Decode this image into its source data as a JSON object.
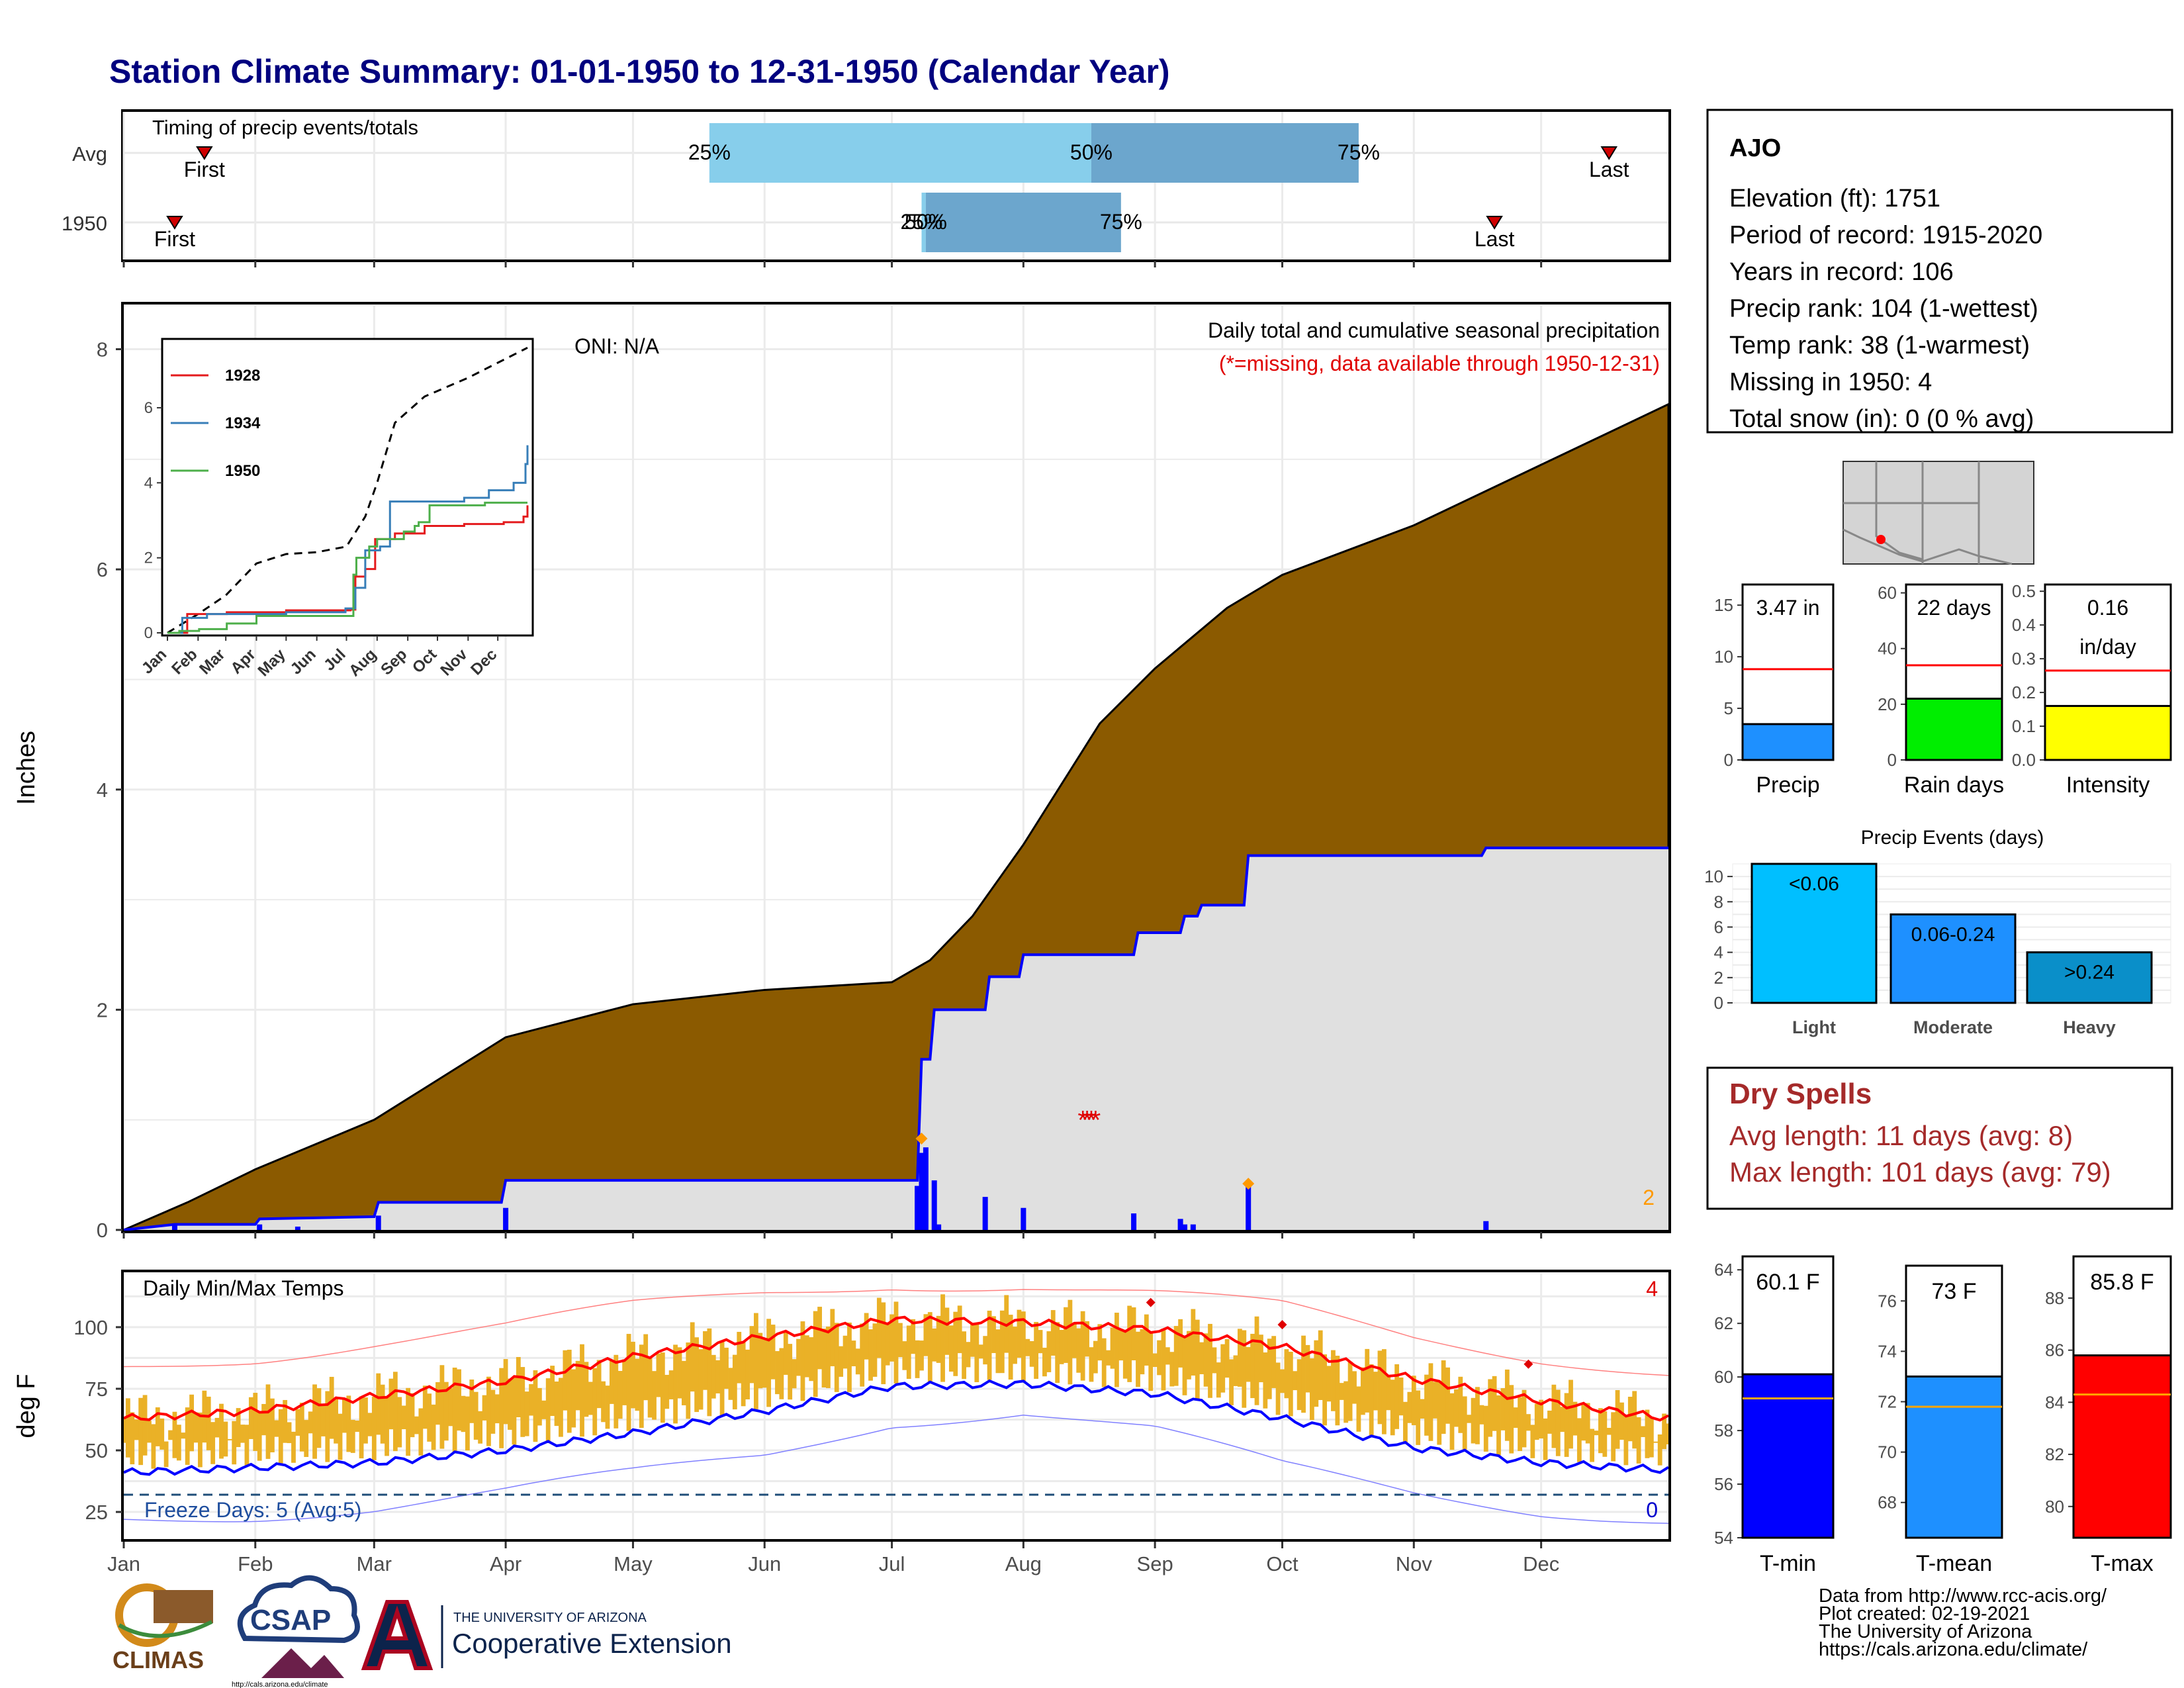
{
  "title": "Station Climate Summary: 01-01-1950 to 12-31-1950 (Calendar Year)",
  "months": [
    "Jan",
    "Feb",
    "Mar",
    "Apr",
    "May",
    "Jun",
    "Jul",
    "Aug",
    "Sep",
    "Oct",
    "Nov",
    "Dec"
  ],
  "timing": {
    "title": "Timing of precip events/totals",
    "rows": [
      {
        "label": "Avg",
        "first_doy": 19,
        "last_doy": 350,
        "p25_doy": 138,
        "p50_doy": 228,
        "p75_doy": 291,
        "p25_label": "25%",
        "p50_label": "50%",
        "p75_label": "75%"
      },
      {
        "label": "1950",
        "first_doy": 12,
        "last_doy": 323,
        "p25_doy": 188,
        "p50_doy": 189,
        "p75_doy": 235,
        "p25_label": "25%",
        "p50_label": "50%",
        "p75_label": "75%"
      }
    ],
    "first_label": "First",
    "last_label": "Last"
  },
  "precip_panel": {
    "ylabel": "Inches",
    "oni": "ONI: N/A",
    "subtitle": "Daily total and cumulative seasonal precipitation",
    "missing_note": "(*=missing, data available through 1950-12-31)",
    "corner_count": "2",
    "ylim": [
      0,
      8.4
    ],
    "yticks": [
      0,
      2,
      4,
      6,
      8
    ],
    "avg_cumulative": [
      [
        0,
        0
      ],
      [
        15,
        0.25
      ],
      [
        31,
        0.55
      ],
      [
        59,
        1.0
      ],
      [
        90,
        1.75
      ],
      [
        120,
        2.05
      ],
      [
        151,
        2.18
      ],
      [
        181,
        2.25
      ],
      [
        190,
        2.45
      ],
      [
        200,
        2.85
      ],
      [
        212,
        3.5
      ],
      [
        230,
        4.6
      ],
      [
        243,
        5.1
      ],
      [
        260,
        5.65
      ],
      [
        273,
        5.95
      ],
      [
        304,
        6.4
      ],
      [
        334,
        6.95
      ],
      [
        364,
        7.5
      ]
    ],
    "cum_1950": [
      [
        0,
        0
      ],
      [
        12,
        0.05
      ],
      [
        31,
        0.05
      ],
      [
        32,
        0.1
      ],
      [
        59,
        0.12
      ],
      [
        60,
        0.25
      ],
      [
        89,
        0.25
      ],
      [
        90,
        0.45
      ],
      [
        187,
        0.45
      ],
      [
        188,
        1.55
      ],
      [
        190,
        1.55
      ],
      [
        191,
        2.0
      ],
      [
        203,
        2.0
      ],
      [
        204,
        2.3
      ],
      [
        211,
        2.3
      ],
      [
        212,
        2.5
      ],
      [
        238,
        2.5
      ],
      [
        239,
        2.7
      ],
      [
        249,
        2.7
      ],
      [
        250,
        2.85
      ],
      [
        253,
        2.85
      ],
      [
        254,
        2.95
      ],
      [
        264,
        2.95
      ],
      [
        265,
        3.4
      ],
      [
        320,
        3.4
      ],
      [
        321,
        3.47
      ],
      [
        364,
        3.47
      ]
    ],
    "daily_bars": [
      [
        12,
        0.05
      ],
      [
        32,
        0.05
      ],
      [
        41,
        0.03
      ],
      [
        60,
        0.13
      ],
      [
        90,
        0.2
      ],
      [
        187,
        0.4
      ],
      [
        188,
        0.7
      ],
      [
        189,
        0.75
      ],
      [
        191,
        0.45
      ],
      [
        192,
        0.05
      ],
      [
        203,
        0.3
      ],
      [
        212,
        0.2
      ],
      [
        238,
        0.15
      ],
      [
        249,
        0.1
      ],
      [
        250,
        0.05
      ],
      [
        252,
        0.05
      ],
      [
        265,
        0.45
      ],
      [
        321,
        0.08
      ]
    ],
    "missing_days": [
      226,
      227,
      228,
      229
    ],
    "missing_y": 1.0,
    "large_event_days": [
      [
        188,
        0.83
      ],
      [
        265,
        0.42
      ]
    ]
  },
  "inset": {
    "yticks": [
      0,
      2,
      4,
      6
    ],
    "ylim": [
      0,
      7.2
    ],
    "avg": [
      [
        0,
        0
      ],
      [
        31,
        0.5
      ],
      [
        59,
        1.0
      ],
      [
        90,
        1.85
      ],
      [
        120,
        2.1
      ],
      [
        151,
        2.15
      ],
      [
        181,
        2.3
      ],
      [
        200,
        3.1
      ],
      [
        212,
        4.0
      ],
      [
        230,
        5.6
      ],
      [
        260,
        6.3
      ],
      [
        304,
        6.8
      ],
      [
        334,
        7.2
      ],
      [
        364,
        7.6
      ]
    ],
    "series": [
      {
        "name": "1928",
        "color": "#e41a1c",
        "values": [
          [
            0,
            0
          ],
          [
            20,
            0.5
          ],
          [
            60,
            0.55
          ],
          [
            120,
            0.6
          ],
          [
            175,
            0.6
          ],
          [
            185,
            0.62
          ],
          [
            190,
            1.5
          ],
          [
            200,
            1.7
          ],
          [
            210,
            2.5
          ],
          [
            230,
            2.65
          ],
          [
            260,
            2.85
          ],
          [
            300,
            2.9
          ],
          [
            340,
            2.95
          ],
          [
            360,
            3.1
          ],
          [
            364,
            3.4
          ]
        ]
      },
      {
        "name": "1934",
        "color": "#377eb8",
        "values": [
          [
            0,
            0
          ],
          [
            15,
            0.4
          ],
          [
            40,
            0.5
          ],
          [
            60,
            0.5
          ],
          [
            120,
            0.55
          ],
          [
            180,
            0.65
          ],
          [
            190,
            1.2
          ],
          [
            200,
            2.2
          ],
          [
            215,
            2.3
          ],
          [
            225,
            3.5
          ],
          [
            300,
            3.6
          ],
          [
            325,
            3.8
          ],
          [
            345,
            3.8
          ],
          [
            350,
            4.0
          ],
          [
            360,
            4.0
          ],
          [
            362,
            4.5
          ],
          [
            364,
            5.0
          ]
        ]
      },
      {
        "name": "1950",
        "color": "#4daf4a",
        "values": [
          [
            0,
            0
          ],
          [
            12,
            0.05
          ],
          [
            32,
            0.1
          ],
          [
            60,
            0.25
          ],
          [
            90,
            0.45
          ],
          [
            187,
            0.45
          ],
          [
            188,
            1.55
          ],
          [
            191,
            2.0
          ],
          [
            204,
            2.3
          ],
          [
            212,
            2.5
          ],
          [
            239,
            2.7
          ],
          [
            250,
            2.85
          ],
          [
            254,
            2.95
          ],
          [
            265,
            3.4
          ],
          [
            321,
            3.47
          ],
          [
            364,
            3.47
          ]
        ]
      }
    ]
  },
  "temp_panel": {
    "title": "Daily Min/Max Temps",
    "ylabel": "deg F",
    "yticks": [
      25,
      50,
      75,
      100
    ],
    "ylim": [
      14,
      122
    ],
    "freeze_label": "Freeze Days: 5 (Avg:5)",
    "corner_top": "4",
    "corner_bottom": "0",
    "freeze_line": 32,
    "avg_max": [
      [
        0,
        63
      ],
      [
        31,
        66
      ],
      [
        59,
        72
      ],
      [
        90,
        78
      ],
      [
        120,
        88
      ],
      [
        151,
        96
      ],
      [
        181,
        103
      ],
      [
        212,
        102
      ],
      [
        243,
        99
      ],
      [
        273,
        92
      ],
      [
        304,
        79
      ],
      [
        334,
        70
      ],
      [
        364,
        63
      ]
    ],
    "avg_min": [
      [
        0,
        41
      ],
      [
        31,
        43
      ],
      [
        59,
        45
      ],
      [
        90,
        50
      ],
      [
        120,
        57
      ],
      [
        151,
        66
      ],
      [
        181,
        76
      ],
      [
        212,
        77
      ],
      [
        243,
        73
      ],
      [
        273,
        63
      ],
      [
        304,
        51
      ],
      [
        334,
        45
      ],
      [
        364,
        42
      ]
    ],
    "rec_max": [
      [
        0,
        84
      ],
      [
        31,
        88
      ],
      [
        59,
        94
      ],
      [
        90,
        100
      ],
      [
        120,
        108
      ],
      [
        151,
        114
      ],
      [
        181,
        118
      ],
      [
        212,
        117
      ],
      [
        243,
        113
      ],
      [
        273,
        108
      ],
      [
        304,
        96
      ],
      [
        334,
        88
      ],
      [
        364,
        82
      ]
    ],
    "rec_min": [
      [
        0,
        22
      ],
      [
        31,
        24
      ],
      [
        59,
        27
      ],
      [
        90,
        33
      ],
      [
        120,
        40
      ],
      [
        151,
        48
      ],
      [
        181,
        62
      ],
      [
        212,
        66
      ],
      [
        243,
        58
      ],
      [
        273,
        43
      ],
      [
        304,
        33
      ],
      [
        334,
        26
      ],
      [
        364,
        22
      ]
    ],
    "record_dots": [
      [
        242,
        110
      ],
      [
        273,
        101
      ],
      [
        331,
        85
      ]
    ]
  },
  "station": {
    "name": "AJO",
    "lines": [
      "Elevation (ft): 1751",
      "Period of record: 1915-2020",
      "Years in record: 106",
      "Precip rank: 104 (1-wettest)",
      "Temp rank: 38 (1-warmest)",
      "Missing in 1950: 4",
      "Total snow (in): 0 (0 % avg)"
    ]
  },
  "summary_bars": [
    {
      "label": "Precip",
      "value_label": "3.47 in",
      "value": 3.47,
      "avg": 8.8,
      "ymax": 17,
      "yticks": [
        0,
        5,
        10,
        15
      ],
      "color": "#1e90ff"
    },
    {
      "label": "Rain days",
      "value_label": "22 days",
      "value": 22,
      "avg": 34,
      "ymax": 63,
      "yticks": [
        0,
        20,
        40,
        60
      ],
      "color": "#00ee00"
    },
    {
      "label": "Intensity",
      "value_label": "0.16",
      "value_label2": "in/day",
      "value": 0.16,
      "avg": 0.265,
      "ymax": 0.52,
      "yticks": [
        0.0,
        0.1,
        0.2,
        0.3,
        0.4,
        0.5
      ],
      "color": "#ffff00"
    }
  ],
  "precip_events": {
    "title": "Precip Events (days)",
    "yticks": [
      0,
      2,
      4,
      6,
      8,
      10
    ],
    "ymax": 11,
    "categories": [
      "Light",
      "Moderate",
      "Heavy"
    ],
    "values": [
      11,
      7,
      4
    ],
    "bar_labels": [
      "<0.06",
      "0.06-0.24",
      ">0.24"
    ],
    "colors": [
      "#00bfff",
      "#1e90ff",
      "#0a8fc9"
    ]
  },
  "dry_spells": {
    "title": "Dry Spells",
    "lines": [
      "Avg length: 11 days (avg: 8)",
      "Max length: 101 days (avg: 79)"
    ]
  },
  "temp_bars": [
    {
      "label": "T-min",
      "value_label": "60.1 F",
      "value": 60.1,
      "avg": 59.2,
      "ymin": 54,
      "ymax": 64.5,
      "yticks": [
        54,
        56,
        58,
        60,
        62,
        64
      ],
      "color": "#0000ff"
    },
    {
      "label": "T-mean",
      "value_label": "73 F",
      "value": 73,
      "avg": 71.8,
      "ymin": 66.6,
      "ymax": 77.4,
      "yticks": [
        68,
        70,
        72,
        74,
        76
      ],
      "color": "#1e90ff"
    },
    {
      "label": "T-max",
      "value_label": "85.8 F",
      "value": 85.8,
      "avg": 84.3,
      "ymin": 78.8,
      "ymax": 89.6,
      "yticks": [
        80,
        82,
        84,
        86,
        88
      ],
      "color": "#ff0000"
    }
  ],
  "footer": {
    "lines": [
      "Data from http://www.rcc-acis.org/",
      "Plot created: 02-19-2021",
      "The University of Arizona",
      "https://cals.arizona.edu/climate/"
    ],
    "climas": "CLIMAS",
    "csap": "CSAP",
    "csap_url": "http://cals.arizona.edu/climate",
    "ua_small": "THE UNIVERSITY OF ARIZONA",
    "ua_big": "Cooperative Extension"
  }
}
